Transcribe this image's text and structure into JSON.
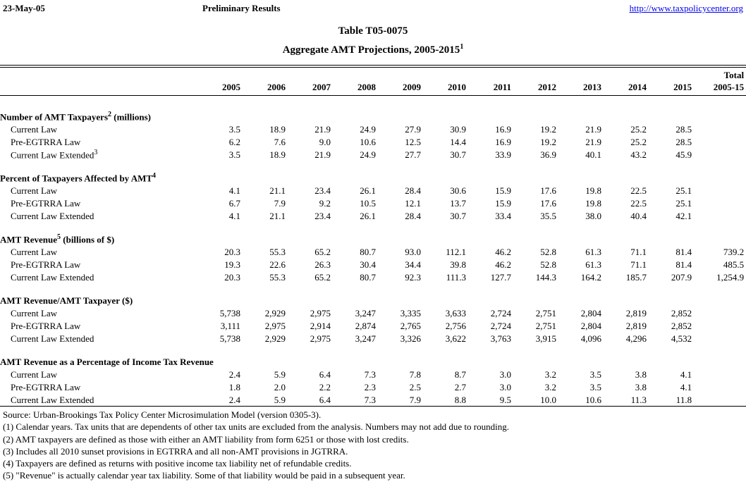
{
  "header": {
    "date": "23-May-05",
    "status": "Preliminary Results",
    "url": "http://www.taxpolicycenter.org"
  },
  "title": {
    "line1": "Table T05-0075",
    "line2": "Aggregate AMT Projections, 2005-2015",
    "line2_sup": "1"
  },
  "colors": {
    "link_blue": "#0000ee",
    "text": "#000000",
    "background": "#ffffff"
  },
  "table": {
    "years": [
      "2005",
      "2006",
      "2007",
      "2008",
      "2009",
      "2010",
      "2011",
      "2012",
      "2013",
      "2014",
      "2015"
    ],
    "total_header_line1": "Total",
    "total_header_line2": "2005-15",
    "groups": [
      {
        "label": "Number of AMT Taxpayers",
        "sup": "2",
        "suffix": " (millions)",
        "rows": [
          {
            "label": "Current Law",
            "sup": "",
            "values": [
              "3.5",
              "18.9",
              "21.9",
              "24.9",
              "27.9",
              "30.9",
              "16.9",
              "19.2",
              "21.9",
              "25.2",
              "28.5"
            ],
            "total": ""
          },
          {
            "label": "Pre-EGTRRA Law",
            "sup": "",
            "values": [
              "6.2",
              "7.6",
              "9.0",
              "10.6",
              "12.5",
              "14.4",
              "16.9",
              "19.2",
              "21.9",
              "25.2",
              "28.5"
            ],
            "total": ""
          },
          {
            "label": "Current Law Extended",
            "sup": "3",
            "values": [
              "3.5",
              "18.9",
              "21.9",
              "24.9",
              "27.7",
              "30.7",
              "33.9",
              "36.9",
              "40.1",
              "43.2",
              "45.9"
            ],
            "total": ""
          }
        ]
      },
      {
        "label": "Percent of Taxpayers Affected by AMT",
        "sup": "4",
        "suffix": "",
        "rows": [
          {
            "label": "Current Law",
            "sup": "",
            "values": [
              "4.1",
              "21.1",
              "23.4",
              "26.1",
              "28.4",
              "30.6",
              "15.9",
              "17.6",
              "19.8",
              "22.5",
              "25.1"
            ],
            "total": ""
          },
          {
            "label": "Pre-EGTRRA Law",
            "sup": "",
            "values": [
              "6.7",
              "7.9",
              "9.2",
              "10.5",
              "12.1",
              "13.7",
              "15.9",
              "17.6",
              "19.8",
              "22.5",
              "25.1"
            ],
            "total": ""
          },
          {
            "label": "Current Law Extended",
            "sup": "",
            "values": [
              "4.1",
              "21.1",
              "23.4",
              "26.1",
              "28.4",
              "30.7",
              "33.4",
              "35.5",
              "38.0",
              "40.4",
              "42.1"
            ],
            "total": ""
          }
        ]
      },
      {
        "label": "AMT Revenue",
        "sup": "5",
        "suffix": " (billions of $)",
        "rows": [
          {
            "label": "Current Law",
            "sup": "",
            "values": [
              "20.3",
              "55.3",
              "65.2",
              "80.7",
              "93.0",
              "112.1",
              "46.2",
              "52.8",
              "61.3",
              "71.1",
              "81.4"
            ],
            "total": "739.2"
          },
          {
            "label": "Pre-EGTRRA Law",
            "sup": "",
            "values": [
              "19.3",
              "22.6",
              "26.3",
              "30.4",
              "34.4",
              "39.8",
              "46.2",
              "52.8",
              "61.3",
              "71.1",
              "81.4"
            ],
            "total": "485.5"
          },
          {
            "label": "Current Law Extended",
            "sup": "",
            "values": [
              "20.3",
              "55.3",
              "65.2",
              "80.7",
              "92.3",
              "111.3",
              "127.7",
              "144.3",
              "164.2",
              "185.7",
              "207.9"
            ],
            "total": "1,254.9"
          }
        ]
      },
      {
        "label": "AMT Revenue/AMT Taxpayer ($)",
        "sup": "",
        "suffix": "",
        "rows": [
          {
            "label": "Current Law",
            "sup": "",
            "values": [
              "5,738",
              "2,929",
              "2,975",
              "3,247",
              "3,335",
              "3,633",
              "2,724",
              "2,751",
              "2,804",
              "2,819",
              "2,852"
            ],
            "total": ""
          },
          {
            "label": "Pre-EGTRRA Law",
            "sup": "",
            "values": [
              "3,111",
              "2,975",
              "2,914",
              "2,874",
              "2,765",
              "2,756",
              "2,724",
              "2,751",
              "2,804",
              "2,819",
              "2,852"
            ],
            "total": ""
          },
          {
            "label": "Current Law Extended",
            "sup": "",
            "values": [
              "5,738",
              "2,929",
              "2,975",
              "3,247",
              "3,326",
              "3,622",
              "3,763",
              "3,915",
              "4,096",
              "4,296",
              "4,532"
            ],
            "total": ""
          }
        ]
      },
      {
        "label": "AMT Revenue as a Percentage of Income Tax Revenue",
        "sup": "",
        "suffix": "",
        "rows": [
          {
            "label": "Current Law",
            "sup": "",
            "values": [
              "2.4",
              "5.9",
              "6.4",
              "7.3",
              "7.8",
              "8.7",
              "3.0",
              "3.2",
              "3.5",
              "3.8",
              "4.1"
            ],
            "total": ""
          },
          {
            "label": "Pre-EGTRRA Law",
            "sup": "",
            "values": [
              "1.8",
              "2.0",
              "2.2",
              "2.3",
              "2.5",
              "2.7",
              "3.0",
              "3.2",
              "3.5",
              "3.8",
              "4.1"
            ],
            "total": ""
          },
          {
            "label": "Current Law Extended",
            "sup": "",
            "values": [
              "2.4",
              "5.9",
              "6.4",
              "7.3",
              "7.9",
              "8.8",
              "9.5",
              "10.0",
              "10.6",
              "11.3",
              "11.8"
            ],
            "total": ""
          }
        ]
      }
    ]
  },
  "footnotes": [
    "Source: Urban-Brookings Tax Policy Center Microsimulation Model (version 0305-3).",
    "(1) Calendar years. Tax units that are dependents of other tax units are excluded from the analysis. Numbers may not add due to rounding.",
    "(2) AMT taxpayers are defined as those with either an AMT liability from form 6251 or those with lost credits.",
    "(3) Includes all 2010 sunset provisions in EGTRRA and all non-AMT provisions in JGTRRA.",
    "(4) Taxpayers are defined as returns with positive income tax liability net of refundable credits.",
    "(5) \"Revenue\" is actually calendar year tax liability.  Some of that liability would be paid in a subsequent year."
  ]
}
